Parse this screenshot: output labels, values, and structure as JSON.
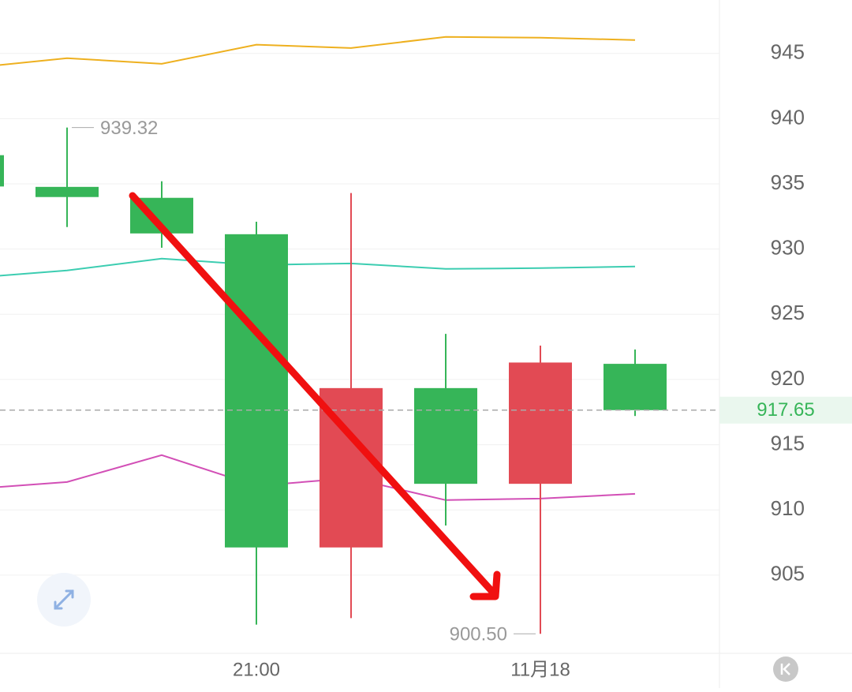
{
  "chart_data": {
    "type": "candlestick",
    "categories": [
      null,
      null,
      null,
      "21:00",
      null,
      null,
      "11月18",
      null
    ],
    "open": [
      937.2,
      934.77,
      933.93,
      931.14,
      907.12,
      919.34,
      912.0,
      921.2
    ],
    "close": [
      934.8,
      933.99,
      931.2,
      907.12,
      919.34,
      912.0,
      921.3,
      917.65
    ],
    "high": [
      937.2,
      939.32,
      935.2,
      932.1,
      934.3,
      923.5,
      922.6,
      922.3
    ],
    "low": [
      934.8,
      931.69,
      930.1,
      901.2,
      901.7,
      908.8,
      900.5,
      917.2
    ],
    "up_color": "#e24a54",
    "down_color": "#36b558",
    "lines": [
      {
        "color": "#eeb01f",
        "values": [
          943.9,
          944.64,
          944.21,
          945.67,
          945.42,
          946.27,
          946.21,
          946.03
        ]
      },
      {
        "color": "#3ccdb1",
        "values": [
          927.8,
          928.36,
          929.27,
          928.78,
          928.9,
          928.48,
          928.54,
          928.66
        ]
      },
      {
        "color": "#d24fb6",
        "values": [
          911.6,
          912.14,
          914.2,
          911.84,
          912.44,
          910.75,
          910.87,
          911.23
        ]
      }
    ],
    "ylim": [
      899.0,
      949.1
    ],
    "yticks": [
      905,
      910,
      915,
      920,
      925,
      930,
      935,
      940,
      945
    ],
    "grid": true,
    "max_label": "939.32",
    "min_label": "900.50",
    "last_price": 917.65,
    "last_price_label": "917.65"
  }
}
